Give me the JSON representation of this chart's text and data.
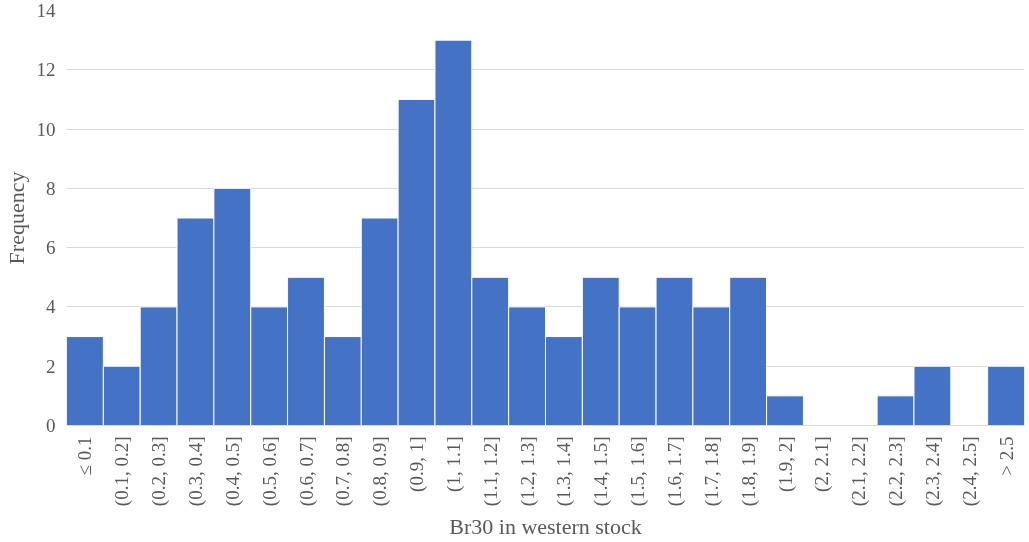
{
  "chart_data": {
    "type": "bar",
    "xlabel": "Br30 in western stock",
    "ylabel": "Frequency",
    "categories": [
      "≤ 0.1",
      "(0.1, 0.2]",
      "(0.2, 0.3]",
      "(0.3, 0.4]",
      "(0.4, 0.5]",
      "(0.5, 0.6]",
      "(0.6, 0.7]",
      "(0.7, 0.8]",
      "(0.8, 0.9]",
      "(0.9, 1]",
      "(1, 1.1]",
      "(1.1, 1.2]",
      "(1.2, 1.3]",
      "(1.3, 1.4]",
      "(1.4, 1.5]",
      "(1.5, 1.6]",
      "(1.6, 1.7]",
      "(1.7, 1.8]",
      "(1.8, 1.9]",
      "(1.9, 2]",
      "(2, 2.1]",
      "(2.1, 2.2]",
      "(2.2, 2.3]",
      "(2.3, 2.4]",
      "(2.4, 2.5]",
      "> 2.5"
    ],
    "values": [
      3,
      2,
      4,
      7,
      8,
      4,
      5,
      3,
      7,
      11,
      13,
      5,
      4,
      3,
      5,
      4,
      5,
      4,
      5,
      1,
      0,
      0,
      1,
      2,
      0,
      2
    ],
    "color": "#4472c4",
    "ylim": [
      0,
      14
    ],
    "yticks": [
      0,
      2,
      4,
      6,
      8,
      10,
      12,
      14
    ],
    "grid": "y"
  }
}
